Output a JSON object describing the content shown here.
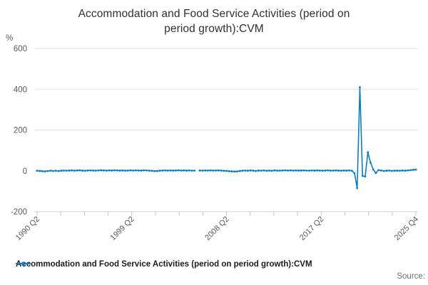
{
  "title": "Accommodation and Food Service Activities (period on period growth):CVM",
  "title_lines": {
    "0": "Accommodation and Food Service Activities (period on",
    "1": "period growth):CVM"
  },
  "y_axis": {
    "unit_label": "%",
    "ticks": [
      600,
      400,
      200,
      0,
      -200
    ],
    "min": -200,
    "max": 600
  },
  "x_axis": {
    "tick_count": 17,
    "labels": [
      {
        "text": "1990 Q2",
        "tick_index": 0
      },
      {
        "text": "1999 Q2",
        "tick_index": 4
      },
      {
        "text": "2008 Q2",
        "tick_index": 8
      },
      {
        "text": "2017 Q2",
        "tick_index": 12
      },
      {
        "text": "2025 Q4",
        "tick_index": 16
      }
    ]
  },
  "legend": {
    "label": "Accommodation and Food Service Activities (period on period growth):CVM"
  },
  "source_label": "Source:",
  "colors": {
    "line": "#0d7dbe",
    "grid": "#e3e3e3",
    "axis_line": "#ccd1d6",
    "tick_mark": "#b9c9de",
    "tick_text": "#595959",
    "title_text": "#303030",
    "legend_text": "#1b1b1b",
    "source_text": "#6e6e6e"
  },
  "chart_data": {
    "type": "line",
    "title": "Accommodation and Food Service Activities (period on period growth):CVM",
    "xlabel": "",
    "ylabel": "%",
    "ylim": [
      -200,
      600
    ],
    "grid": "horizontal",
    "legend_position": "bottom",
    "frequency": "quarterly",
    "x_start": "1990 Q2",
    "x_end": "2025 Q4",
    "x_tick_labels": [
      "1990 Q2",
      "1999 Q2",
      "2008 Q2",
      "2017 Q2",
      "2025 Q4"
    ],
    "series": [
      {
        "name": "Accommodation and Food Service Activities (period on period growth):CVM",
        "values": [
          0.5,
          -0.7,
          -1.8,
          -2.5,
          -1.2,
          0.8,
          -0.9,
          0.4,
          -1.1,
          0.6,
          1.2,
          0.9,
          1.5,
          2.1,
          0.7,
          1.8,
          2.4,
          1.1,
          0.5,
          1.6,
          2.2,
          1.4,
          0.9,
          1.7,
          2.8,
          1.9,
          1.2,
          2.1,
          1.5,
          2.6,
          1.8,
          1.0,
          1.9,
          0.8,
          1.4,
          2.0,
          1.3,
          2.2,
          1.6,
          1.1,
          2.3,
          1.7,
          0.9,
          0.3,
          -1.5,
          -0.8,
          0.6,
          1.4,
          2.0,
          1.2,
          1.8,
          1.0,
          1.6,
          2.4,
          1.3,
          1.9,
          1.1,
          1.7,
          0.8,
          1.2,
          null,
          1.5,
          0.9,
          1.8,
          1.2,
          2.1,
          1.4,
          1.6,
          2.0,
          1.1,
          0.4,
          -0.6,
          -1.9,
          -2.8,
          -3.6,
          -2.9,
          -1.1,
          0.7,
          1.3,
          0.6,
          1.9,
          1.0,
          -0.8,
          1.5,
          0.9,
          1.7,
          0.5,
          1.2,
          0.3,
          2.0,
          1.1,
          0.8,
          1.6,
          2.3,
          1.4,
          2.0,
          1.2,
          1.8,
          1.0,
          1.5,
          2.1,
          1.3,
          0.9,
          1.7,
          1.1,
          1.9,
          1.2,
          0.6,
          1.4,
          2.2,
          0.8,
          1.3,
          2.0,
          1.1,
          0.7,
          1.6,
          1.0,
          1.8,
          0.4,
          -12,
          -85,
          410,
          -25,
          -28,
          91,
          40,
          7,
          -11,
          3.5,
          1.8,
          -0.9,
          0.6,
          1.4,
          -0.5,
          0.8,
          1.1,
          0.4,
          1.5,
          0.7,
          2.0,
          3.5,
          5.0,
          6.0
        ]
      }
    ]
  }
}
